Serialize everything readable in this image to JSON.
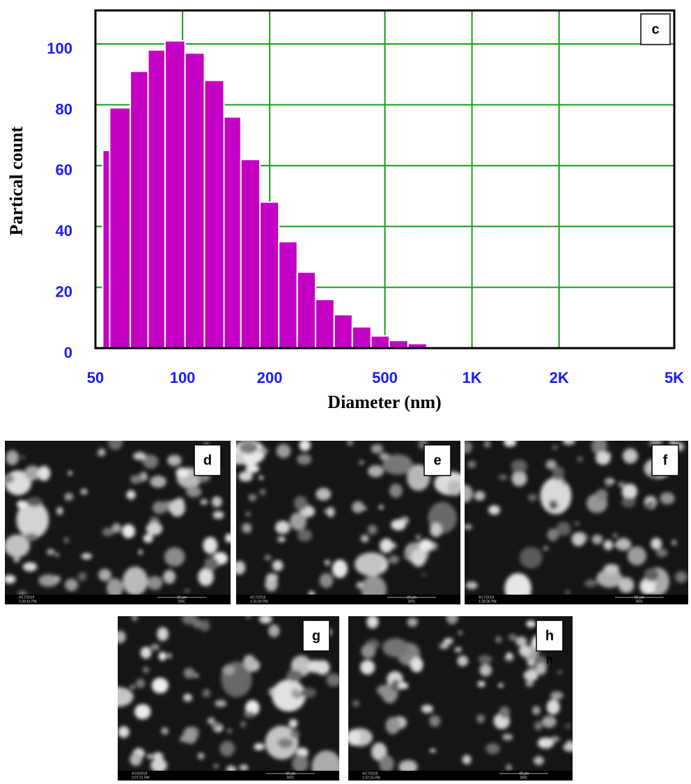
{
  "chart_data": {
    "type": "histogram",
    "panel_label": "c",
    "x_label": "Diameter (nm)",
    "y_label": "Partical count",
    "bins": [
      53,
      56,
      66,
      76,
      87,
      102,
      119,
      139,
      159,
      185,
      215,
      249,
      288,
      334,
      386,
      448,
      518,
      601,
      698
    ],
    "values": [
      65,
      79,
      91,
      98,
      101,
      97,
      88,
      76,
      62,
      48,
      35,
      25,
      16,
      11,
      7,
      4,
      2.5,
      1.5
    ],
    "color": "#c400c4",
    "grid_color": "#1a9a1a",
    "x_log": true,
    "xlim": [
      50,
      5000
    ],
    "xticks": [
      50,
      100,
      200,
      500,
      {
        "value": 1000,
        "label": "1K"
      },
      {
        "value": 2000,
        "label": "2K"
      },
      {
        "value": 5000,
        "label": "5K"
      }
    ],
    "ylim": [
      0,
      111
    ],
    "yticks": [
      0,
      20,
      40,
      60,
      80,
      100
    ],
    "grid": true
  },
  "panels": [
    {
      "label": "d",
      "date": "4/17/2019",
      "time": "1:39:41 PM",
      "scale": "10 µm",
      "site": "DRC"
    },
    {
      "label": "e",
      "date": "4/17/2019",
      "time": "1:31:04 PM",
      "scale": "20 µm",
      "site": "DRC"
    },
    {
      "label": "f",
      "date": "4/17/2019",
      "time": "1:28:36 PM",
      "scale": "50 µm",
      "site": "DRC"
    },
    {
      "label": "g",
      "date": "4/16/2019",
      "time": "2:07:21 PM",
      "scale": "30 µm",
      "site": "DRC"
    },
    {
      "label": "h",
      "date": "4/17/2019",
      "time": "1:22:15 PM",
      "scale": "40 µm",
      "site": "DRC",
      "stray_label": "h"
    }
  ]
}
